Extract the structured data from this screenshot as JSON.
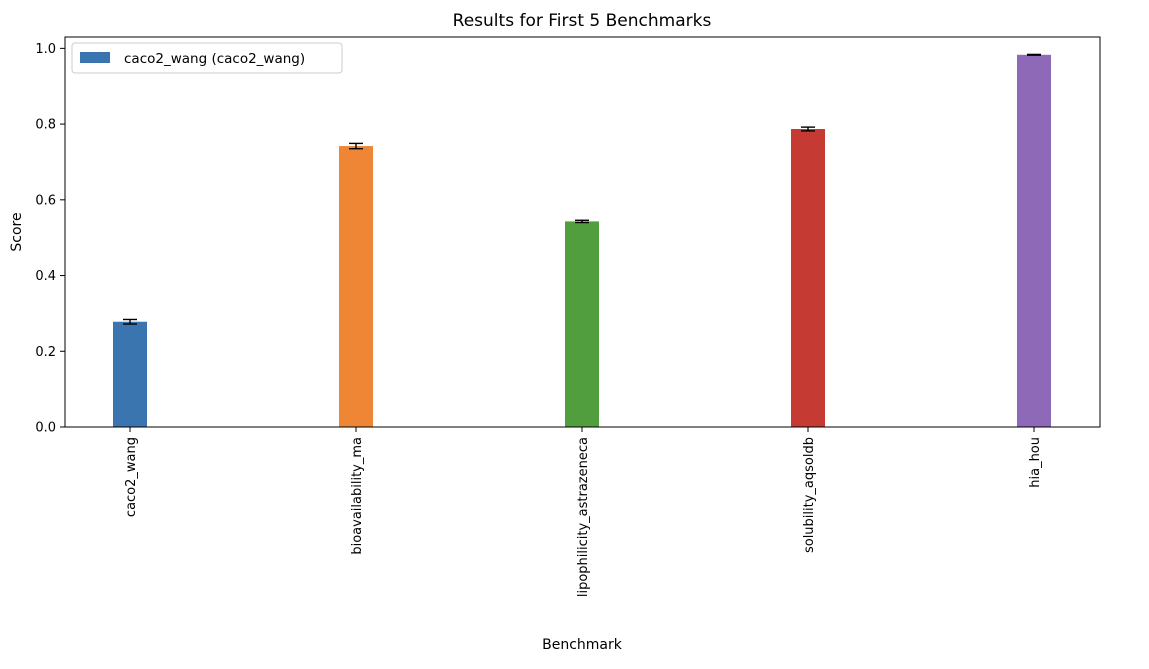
{
  "chart_data": {
    "type": "bar",
    "title": "Results for First 5 Benchmarks",
    "xlabel": "Benchmark",
    "ylabel": "Score",
    "ylim": [
      0,
      1.03
    ],
    "yticks": [
      "0.0",
      "0.2",
      "0.4",
      "0.6",
      "0.8",
      "1.0"
    ],
    "categories": [
      "caco2_wang",
      "bioavailability_ma",
      "lipophilicity_astrazeneca",
      "solubility_aqsoldb",
      "hia_hou"
    ],
    "values": [
      0.278,
      0.742,
      0.543,
      0.787,
      0.983
    ],
    "errors": [
      0.006,
      0.007,
      0.003,
      0.005,
      0.001
    ],
    "colors": [
      "#3b75af",
      "#ef8636",
      "#519e3e",
      "#c53a32",
      "#8d69b8"
    ],
    "legend": {
      "position": "top-left",
      "entries": [
        {
          "label": "caco2_wang (caco2_wang)",
          "color": "#3b75af"
        }
      ]
    },
    "grid": false
  }
}
